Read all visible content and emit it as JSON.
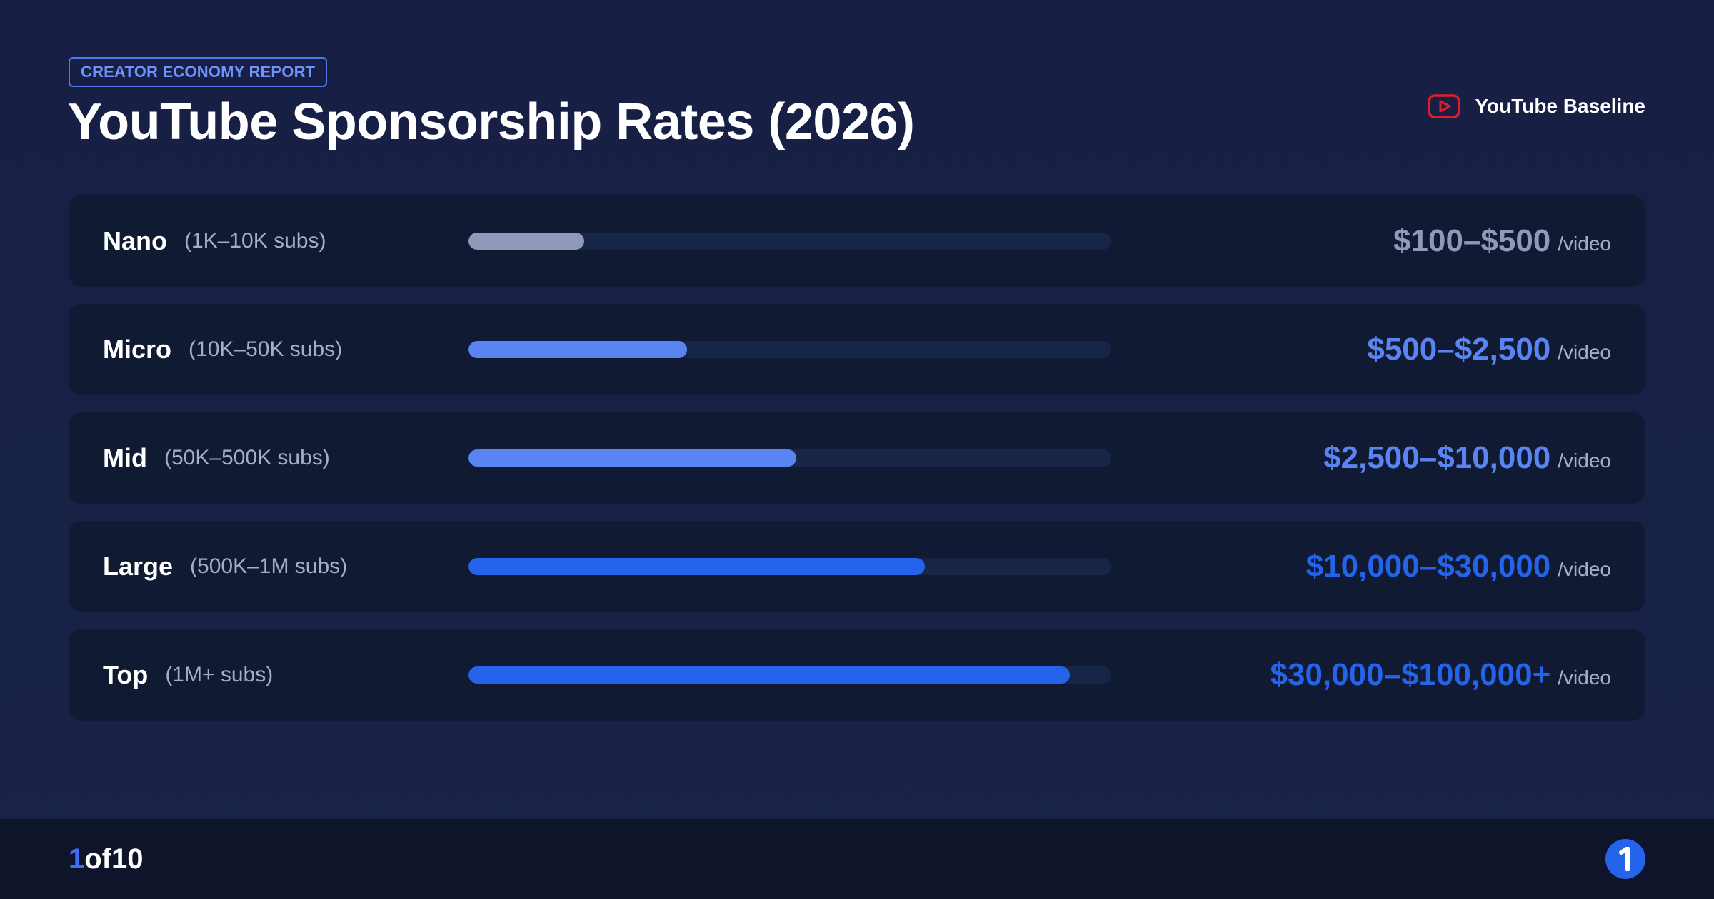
{
  "header": {
    "badge": "CREATOR ECONOMY REPORT",
    "title": "YouTube Sponsorship Rates (2026)",
    "legend_label": "YouTube Baseline",
    "legend_icon": "youtube-play-icon",
    "legend_icon_color": "#e11d2b"
  },
  "tiers": [
    {
      "name": "Nano",
      "subs": "(1K–10K subs)",
      "rate": "$100–$500",
      "unit": "/video",
      "bar_fraction": 0.18,
      "bar_color": "#8e9ab8",
      "rate_color": "#8e9ab8"
    },
    {
      "name": "Micro",
      "subs": "(10K–50K subs)",
      "rate": "$500–$2,500",
      "unit": "/video",
      "bar_fraction": 0.34,
      "bar_color": "#5b84f3",
      "rate_color": "#5b84f3"
    },
    {
      "name": "Mid",
      "subs": "(50K–500K subs)",
      "rate": "$2,500–$10,000",
      "unit": "/video",
      "bar_fraction": 0.51,
      "bar_color": "#5b84f3",
      "rate_color": "#5b84f3"
    },
    {
      "name": "Large",
      "subs": "(500K–1M subs)",
      "rate": "$10,000–$30,000",
      "unit": "/video",
      "bar_fraction": 0.71,
      "bar_color": "#2563eb",
      "rate_color": "#2563eb"
    },
    {
      "name": "Top",
      "subs": "(1M+ subs)",
      "rate": "$30,000–$100,000+",
      "unit": "/video",
      "bar_fraction": 0.935,
      "bar_color": "#2563eb",
      "rate_color": "#2563eb"
    }
  ],
  "footer": {
    "current_page": "1",
    "page_total": "of10",
    "logo_icon": "brand-logo-icon",
    "logo_color": "#2563eb"
  }
}
